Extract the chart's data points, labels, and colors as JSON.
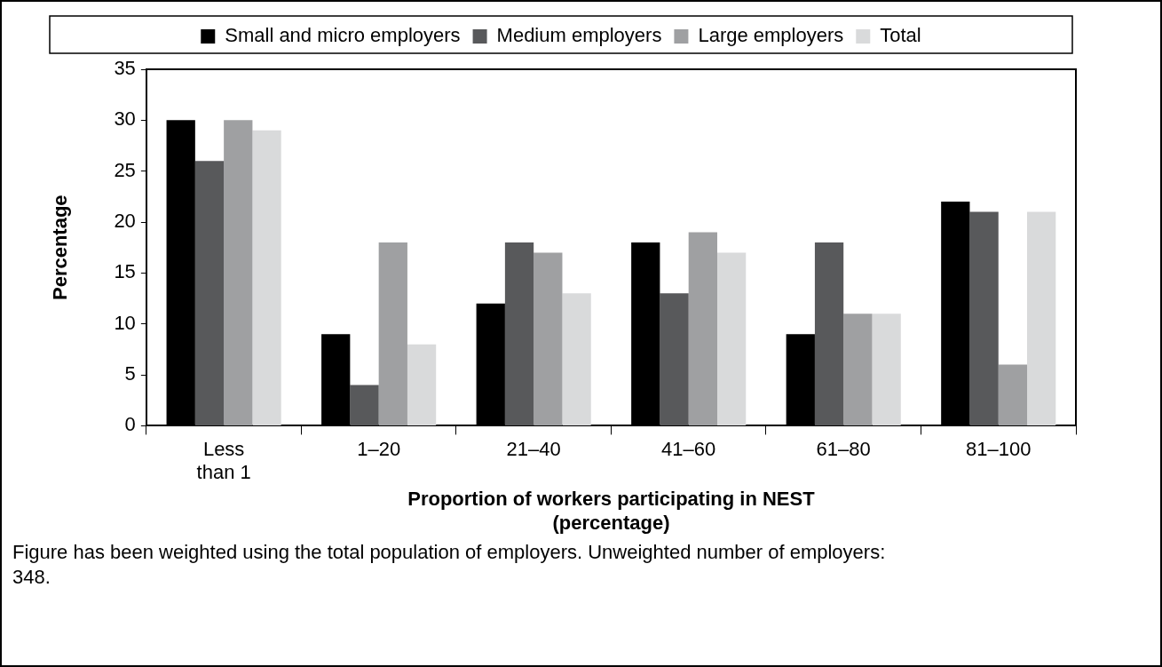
{
  "chart_data": {
    "type": "bar",
    "categories": [
      "Less than 1",
      "1–20",
      "21–40",
      "41–60",
      "61–80",
      "81–100"
    ],
    "series": [
      {
        "name": "Small and micro employers",
        "color": "#000000",
        "values": [
          30,
          9,
          12,
          18,
          9,
          22
        ]
      },
      {
        "name": "Medium employers",
        "color": "#58595b",
        "values": [
          26,
          4,
          18,
          13,
          18,
          21
        ]
      },
      {
        "name": "Large employers",
        "color": "#9fa0a2",
        "values": [
          30,
          18,
          17,
          19,
          11,
          6
        ]
      },
      {
        "name": "Total",
        "color": "#d9dadb",
        "values": [
          29,
          8,
          13,
          17,
          11,
          21
        ]
      }
    ],
    "xlabel": "Proportion of workers participating in NEST (percentage)",
    "ylabel": "Percentage",
    "ylim": [
      0,
      35
    ],
    "yticks": [
      0,
      5,
      10,
      15,
      20,
      25,
      30,
      35
    ],
    "grid": false,
    "legend": "top",
    "annotations": [
      "Figure has been weighted using the total population of employers. Unweighted number of employers: 348."
    ]
  }
}
